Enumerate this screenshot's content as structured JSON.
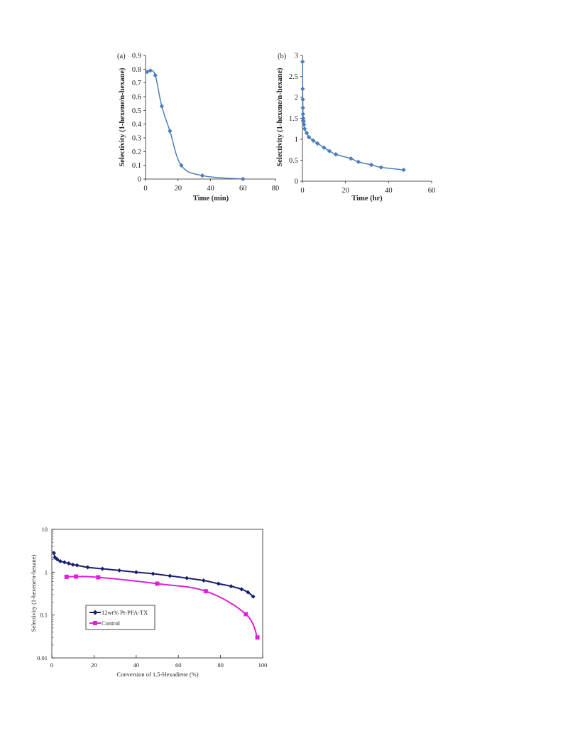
{
  "chart_data": [
    {
      "type": "line",
      "panel_label": "(a)",
      "xlabel": "Time (min)",
      "ylabel": "Selectivity (1-hexene/n-hexane)",
      "xlim": [
        0,
        80
      ],
      "ylim": [
        0,
        0.9
      ],
      "x_ticks": [
        "0",
        "20",
        "40",
        "60",
        "80"
      ],
      "y_ticks": [
        "0",
        "0.1",
        "0.2",
        "0.3",
        "0.4",
        "0.5",
        "0.6",
        "0.7",
        "0.8",
        "0.9"
      ],
      "grid": false,
      "colors": {
        "series": "#4a7ebb"
      },
      "series": [
        {
          "x": [
            1,
            3,
            6,
            10,
            15,
            22,
            35,
            60
          ],
          "y": [
            0.78,
            0.79,
            0.755,
            0.53,
            0.35,
            0.1,
            0.025,
            0.0
          ]
        }
      ]
    },
    {
      "type": "line",
      "panel_label": "(b)",
      "xlabel": "Time (hr)",
      "ylabel": "Selectivity (1-hexene/n-hexane)",
      "xlim": [
        0,
        60
      ],
      "ylim": [
        0,
        3
      ],
      "x_ticks": [
        "0",
        "20",
        "40",
        "60"
      ],
      "y_ticks": [
        "0",
        "0.5",
        "1",
        "1.5",
        "2",
        "2.5",
        "3"
      ],
      "grid": false,
      "colors": {
        "series": "#4a7ebb"
      },
      "series": [
        {
          "x": [
            0.05,
            0.1,
            0.15,
            0.2,
            0.25,
            0.3,
            0.35,
            0.5,
            0.7,
            1.0,
            2.0,
            3.0,
            5.0,
            7.0,
            10.0,
            12.5,
            15.5,
            22.5,
            26.0,
            32.0,
            36.5,
            47.0
          ],
          "y": [
            2.85,
            2.2,
            1.95,
            1.75,
            1.6,
            1.5,
            1.45,
            1.42,
            1.35,
            1.25,
            1.15,
            1.05,
            0.97,
            0.9,
            0.8,
            0.72,
            0.64,
            0.54,
            0.46,
            0.39,
            0.33,
            0.27
          ]
        }
      ]
    },
    {
      "type": "line",
      "xlabel": "Conversion of 1,5-Hexadiene (%)",
      "ylabel": "Selectivity (1-hexene/n-hexane)",
      "xlim": [
        0,
        100
      ],
      "ylim": [
        0.01,
        10
      ],
      "yscale": "log",
      "x_ticks": [
        "0",
        "20",
        "40",
        "60",
        "80",
        "100"
      ],
      "y_ticks": [
        "0.01",
        "0.1",
        "1",
        "10"
      ],
      "grid": false,
      "legend_position": "lower-left",
      "series": [
        {
          "name": "12wt% Pt-PFA-TX",
          "color": "#1a1f6e",
          "x": [
            1,
            1.5,
            2.5,
            4,
            6,
            8,
            10,
            12,
            17,
            24,
            32,
            40,
            48,
            56,
            64,
            72,
            79,
            85,
            90,
            93,
            95.5
          ],
          "y": [
            2.8,
            2.2,
            2.0,
            1.8,
            1.7,
            1.6,
            1.5,
            1.45,
            1.3,
            1.2,
            1.1,
            1.0,
            0.92,
            0.82,
            0.73,
            0.64,
            0.54,
            0.47,
            0.4,
            0.34,
            0.27
          ]
        },
        {
          "name": "Control",
          "color": "#e020d8",
          "x": [
            7,
            11.5,
            22,
            50,
            73,
            92,
            97.5
          ],
          "y": [
            0.78,
            0.79,
            0.76,
            0.54,
            0.36,
            0.105,
            0.03
          ]
        }
      ]
    }
  ]
}
